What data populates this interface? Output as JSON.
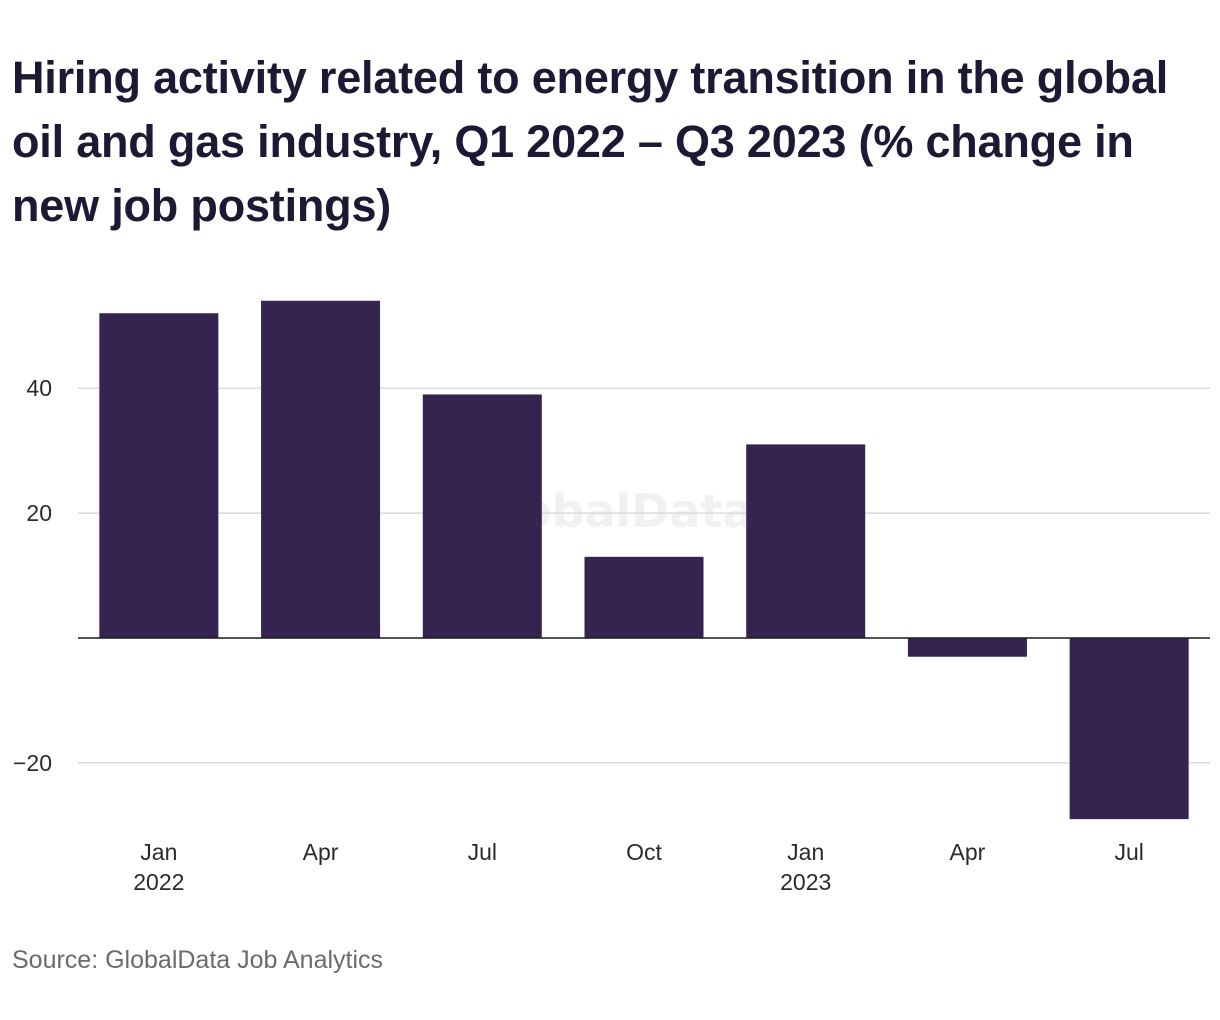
{
  "chart_data": {
    "type": "bar",
    "title": "Hiring activity related to energy transition in the global oil and gas industry, Q1 2022 – Q3 2023 (% change in new job postings)",
    "categories": [
      "Jan 2022",
      "Apr 2022",
      "Jul 2022",
      "Oct 2022",
      "Jan 2023",
      "Apr 2023",
      "Jul 2023"
    ],
    "x_tick_labels": [
      {
        "line1": "Jan",
        "line2": "2022"
      },
      {
        "line1": "Apr",
        "line2": ""
      },
      {
        "line1": "Jul",
        "line2": ""
      },
      {
        "line1": "Oct",
        "line2": ""
      },
      {
        "line1": "Jan",
        "line2": "2023"
      },
      {
        "line1": "Apr",
        "line2": ""
      },
      {
        "line1": "Jul",
        "line2": ""
      }
    ],
    "values": [
      52,
      54,
      39,
      13,
      31,
      -3,
      -29
    ],
    "y_ticks": [
      40,
      20,
      -20
    ],
    "y_tick_labels": [
      "40",
      "20",
      "−20"
    ],
    "ylim": [
      -30,
      60
    ],
    "grid": true,
    "xlabel": "",
    "ylabel": "",
    "bar_color": "#352450",
    "gridline_color": "#d4d4d4",
    "zero_line_color": "#1a1a1a",
    "watermark": "GlobalData",
    "source": "Source: GlobalData Job Analytics"
  }
}
